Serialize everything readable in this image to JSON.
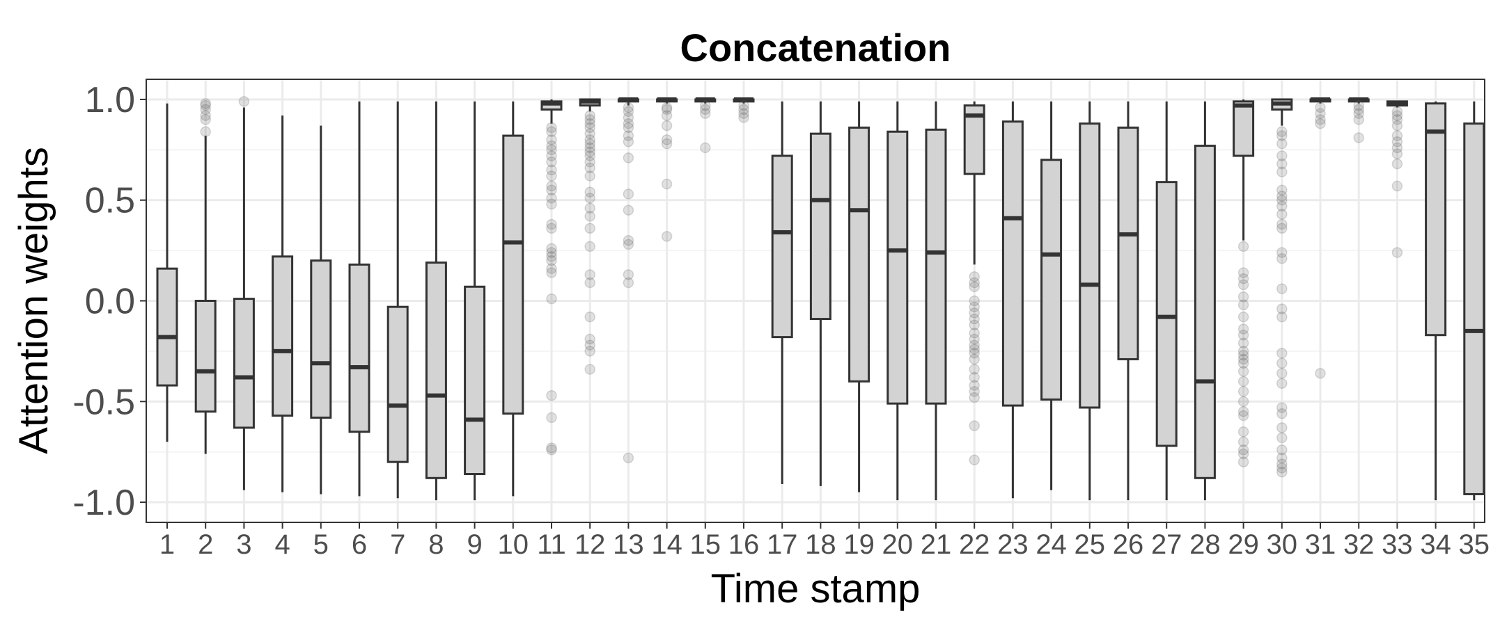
{
  "chart_data": {
    "type": "boxplot",
    "title": "Concatenation",
    "xlabel": "Time stamp",
    "ylabel": "Attention weights",
    "ylim": [
      -1.1,
      1.1
    ],
    "yticks": [
      -1.0,
      -0.5,
      0.0,
      0.5,
      1.0
    ],
    "ytick_labels": [
      "-1.0",
      "-0.5",
      "0.0",
      "0.5",
      "1.0"
    ],
    "grid": true,
    "colors": {
      "box_fill": "#d3d3d3",
      "box_stroke": "#333333",
      "outlier": "#595959",
      "grid_major": "#ebebeb",
      "grid_minor": "#f4f4f4",
      "panel_border": "#333333"
    },
    "boxes": [
      {
        "label": "1",
        "whisker_low": -0.7,
        "q1": -0.42,
        "median": -0.18,
        "q3": 0.16,
        "whisker_high": 0.98,
        "outliers": []
      },
      {
        "label": "2",
        "whisker_low": -0.76,
        "q1": -0.55,
        "median": -0.35,
        "q3": 0.0,
        "whisker_high": 0.82,
        "outliers": [
          0.98,
          0.97,
          0.95,
          0.92,
          0.9,
          0.84
        ]
      },
      {
        "label": "3",
        "whisker_low": -0.94,
        "q1": -0.63,
        "median": -0.38,
        "q3": 0.01,
        "whisker_high": 0.96,
        "outliers": [
          0.99
        ]
      },
      {
        "label": "4",
        "whisker_low": -0.95,
        "q1": -0.57,
        "median": -0.25,
        "q3": 0.22,
        "whisker_high": 0.92,
        "outliers": []
      },
      {
        "label": "5",
        "whisker_low": -0.96,
        "q1": -0.58,
        "median": -0.31,
        "q3": 0.2,
        "whisker_high": 0.87,
        "outliers": []
      },
      {
        "label": "6",
        "whisker_low": -0.97,
        "q1": -0.65,
        "median": -0.33,
        "q3": 0.18,
        "whisker_high": 0.99,
        "outliers": []
      },
      {
        "label": "7",
        "whisker_low": -0.98,
        "q1": -0.8,
        "median": -0.52,
        "q3": -0.03,
        "whisker_high": 0.99,
        "outliers": []
      },
      {
        "label": "8",
        "whisker_low": -0.99,
        "q1": -0.88,
        "median": -0.47,
        "q3": 0.19,
        "whisker_high": 0.99,
        "outliers": []
      },
      {
        "label": "9",
        "whisker_low": -0.99,
        "q1": -0.86,
        "median": -0.59,
        "q3": 0.07,
        "whisker_high": 0.99,
        "outliers": []
      },
      {
        "label": "10",
        "whisker_low": -0.97,
        "q1": -0.56,
        "median": 0.29,
        "q3": 0.82,
        "whisker_high": 0.99,
        "outliers": []
      },
      {
        "label": "11",
        "whisker_low": 0.88,
        "q1": 0.95,
        "median": 0.98,
        "q3": 0.99,
        "whisker_high": 1.0,
        "outliers": [
          0.86,
          0.84,
          0.8,
          0.77,
          0.75,
          0.72,
          0.69,
          0.65,
          0.62,
          0.57,
          0.55,
          0.51,
          0.48,
          0.38,
          0.36,
          0.26,
          0.24,
          0.22,
          0.2,
          0.16,
          0.14,
          0.01,
          -0.47,
          -0.58,
          -0.73,
          -0.74
        ]
      },
      {
        "label": "12",
        "whisker_low": 0.94,
        "q1": 0.97,
        "median": 0.99,
        "q3": 1.0,
        "whisker_high": 1.0,
        "outliers": [
          0.92,
          0.9,
          0.88,
          0.86,
          0.83,
          0.8,
          0.78,
          0.76,
          0.74,
          0.72,
          0.69,
          0.66,
          0.62,
          0.54,
          0.51,
          0.46,
          0.42,
          0.36,
          0.27,
          0.13,
          0.09,
          -0.08,
          -0.19,
          -0.22,
          -0.25,
          -0.34
        ]
      },
      {
        "label": "13",
        "whisker_low": 0.97,
        "q1": 0.99,
        "median": 1.0,
        "q3": 1.0,
        "whisker_high": 1.0,
        "outliers": [
          0.96,
          0.94,
          0.91,
          0.88,
          0.86,
          0.82,
          0.79,
          0.71,
          0.53,
          0.45,
          0.3,
          0.28,
          0.13,
          0.09,
          -0.78
        ]
      },
      {
        "label": "14",
        "whisker_low": 0.98,
        "q1": 0.99,
        "median": 1.0,
        "q3": 1.0,
        "whisker_high": 1.0,
        "outliers": [
          0.96,
          0.95,
          0.92,
          0.87,
          0.8,
          0.78,
          0.58,
          0.32
        ]
      },
      {
        "label": "15",
        "whisker_low": 0.98,
        "q1": 0.99,
        "median": 1.0,
        "q3": 1.0,
        "whisker_high": 1.0,
        "outliers": [
          0.97,
          0.95,
          0.93,
          0.76
        ]
      },
      {
        "label": "16",
        "whisker_low": 0.98,
        "q1": 0.99,
        "median": 1.0,
        "q3": 1.0,
        "whisker_high": 1.0,
        "outliers": [
          0.97,
          0.95,
          0.93,
          0.91
        ]
      },
      {
        "label": "17",
        "whisker_low": -0.91,
        "q1": -0.18,
        "median": 0.34,
        "q3": 0.72,
        "whisker_high": 0.99,
        "outliers": []
      },
      {
        "label": "18",
        "whisker_low": -0.92,
        "q1": -0.09,
        "median": 0.5,
        "q3": 0.83,
        "whisker_high": 0.99,
        "outliers": []
      },
      {
        "label": "19",
        "whisker_low": -0.95,
        "q1": -0.4,
        "median": 0.45,
        "q3": 0.86,
        "whisker_high": 0.99,
        "outliers": []
      },
      {
        "label": "20",
        "whisker_low": -0.99,
        "q1": -0.51,
        "median": 0.25,
        "q3": 0.84,
        "whisker_high": 0.99,
        "outliers": []
      },
      {
        "label": "21",
        "whisker_low": -0.99,
        "q1": -0.51,
        "median": 0.24,
        "q3": 0.85,
        "whisker_high": 0.99,
        "outliers": []
      },
      {
        "label": "22",
        "whisker_low": 0.18,
        "q1": 0.63,
        "median": 0.92,
        "q3": 0.97,
        "whisker_high": 0.99,
        "outliers": [
          0.12,
          0.09,
          0.07,
          0.0,
          -0.03,
          -0.06,
          -0.09,
          -0.12,
          -0.16,
          -0.19,
          -0.22,
          -0.24,
          -0.26,
          -0.29,
          -0.34,
          -0.38,
          -0.42,
          -0.45,
          -0.48,
          -0.62,
          -0.79
        ]
      },
      {
        "label": "23",
        "whisker_low": -0.98,
        "q1": -0.52,
        "median": 0.41,
        "q3": 0.89,
        "whisker_high": 0.99,
        "outliers": []
      },
      {
        "label": "24",
        "whisker_low": -0.94,
        "q1": -0.49,
        "median": 0.23,
        "q3": 0.7,
        "whisker_high": 0.99,
        "outliers": []
      },
      {
        "label": "25",
        "whisker_low": -0.99,
        "q1": -0.53,
        "median": 0.08,
        "q3": 0.88,
        "whisker_high": 0.99,
        "outliers": []
      },
      {
        "label": "26",
        "whisker_low": -0.99,
        "q1": -0.29,
        "median": 0.33,
        "q3": 0.86,
        "whisker_high": 0.99,
        "outliers": []
      },
      {
        "label": "27",
        "whisker_low": -0.99,
        "q1": -0.72,
        "median": -0.08,
        "q3": 0.59,
        "whisker_high": 0.99,
        "outliers": []
      },
      {
        "label": "28",
        "whisker_low": -0.99,
        "q1": -0.88,
        "median": -0.4,
        "q3": 0.77,
        "whisker_high": 0.99,
        "outliers": []
      },
      {
        "label": "29",
        "whisker_low": 0.3,
        "q1": 0.72,
        "median": 0.97,
        "q3": 0.99,
        "whisker_high": 1.0,
        "outliers": [
          0.27,
          0.14,
          0.11,
          0.08,
          0.02,
          -0.02,
          -0.08,
          -0.14,
          -0.17,
          -0.21,
          -0.25,
          -0.27,
          -0.29,
          -0.31,
          -0.35,
          -0.4,
          -0.45,
          -0.5,
          -0.55,
          -0.57,
          -0.65,
          -0.7,
          -0.74,
          -0.76,
          -0.8
        ]
      },
      {
        "label": "30",
        "whisker_low": 0.87,
        "q1": 0.95,
        "median": 0.98,
        "q3": 1.0,
        "whisker_high": 1.0,
        "outliers": [
          0.84,
          0.82,
          0.78,
          0.72,
          0.68,
          0.64,
          0.55,
          0.52,
          0.5,
          0.47,
          0.43,
          0.38,
          0.36,
          0.24,
          0.21,
          0.06,
          -0.04,
          -0.08,
          -0.26,
          -0.31,
          -0.36,
          -0.41,
          -0.53,
          -0.56,
          -0.63,
          -0.68,
          -0.74,
          -0.78,
          -0.81,
          -0.83,
          -0.85
        ]
      },
      {
        "label": "31",
        "whisker_low": 0.98,
        "q1": 0.99,
        "median": 1.0,
        "q3": 1.0,
        "whisker_high": 1.0,
        "outliers": [
          0.96,
          0.93,
          0.9,
          0.88,
          -0.36
        ]
      },
      {
        "label": "32",
        "whisker_low": 0.98,
        "q1": 0.99,
        "median": 1.0,
        "q3": 1.0,
        "whisker_high": 1.0,
        "outliers": [
          0.97,
          0.95,
          0.93,
          0.9,
          0.81
        ]
      },
      {
        "label": "33",
        "whisker_low": 0.96,
        "q1": 0.97,
        "median": 0.98,
        "q3": 0.99,
        "whisker_high": 0.99,
        "outliers": [
          0.94,
          0.92,
          0.9,
          0.87,
          0.82,
          0.79,
          0.76,
          0.73,
          0.68,
          0.57,
          0.24
        ]
      },
      {
        "label": "34",
        "whisker_low": -0.99,
        "q1": -0.17,
        "median": 0.84,
        "q3": 0.98,
        "whisker_high": 0.99,
        "outliers": []
      },
      {
        "label": "35",
        "whisker_low": -0.99,
        "q1": -0.96,
        "median": -0.15,
        "q3": 0.88,
        "whisker_high": 0.99,
        "outliers": []
      }
    ]
  }
}
